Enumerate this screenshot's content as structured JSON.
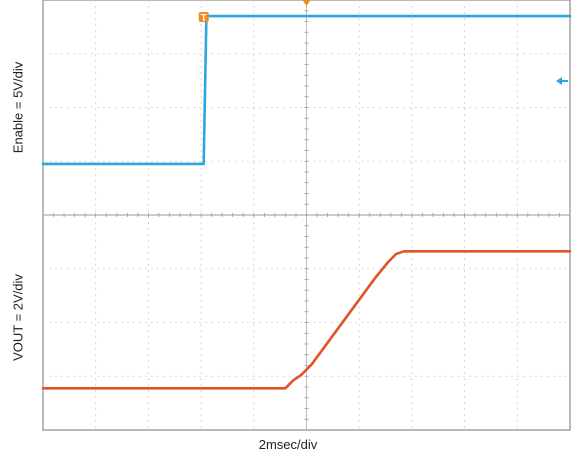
{
  "chart_data": {
    "type": "line",
    "title": "",
    "xlabel": "2msec/div",
    "x_units": "div",
    "x_range": [
      0,
      10
    ],
    "grid": true,
    "panels": [
      {
        "name": "enable-panel",
        "ylabel": "Enable = 5V/div",
        "y_range_div": [
          -4,
          4
        ],
        "color": "#2aa7de",
        "series": {
          "x": [
            0,
            3.05,
            3.07,
            3.1,
            10
          ],
          "y": [
            -2.1,
            -2.1,
            0.2,
            3.4,
            3.4
          ]
        }
      },
      {
        "name": "vout-panel",
        "ylabel": "VOUT = 2V/div",
        "y_range_div": [
          -4,
          4
        ],
        "color": "#e0542a",
        "series": {
          "x": [
            0,
            4.6,
            4.75,
            4.9,
            5.1,
            5.4,
            5.7,
            6.0,
            6.3,
            6.55,
            6.7,
            6.85,
            7.0,
            10
          ],
          "y": [
            -2.45,
            -2.45,
            -2.15,
            -1.95,
            -1.55,
            -0.75,
            0.05,
            0.85,
            1.65,
            2.25,
            2.55,
            2.65,
            2.65,
            2.65
          ]
        }
      }
    ],
    "markers": {
      "trigger_marker": "T",
      "trigger_color": "#f08a24",
      "ch1_arrow_color": "#2aa7de"
    }
  }
}
